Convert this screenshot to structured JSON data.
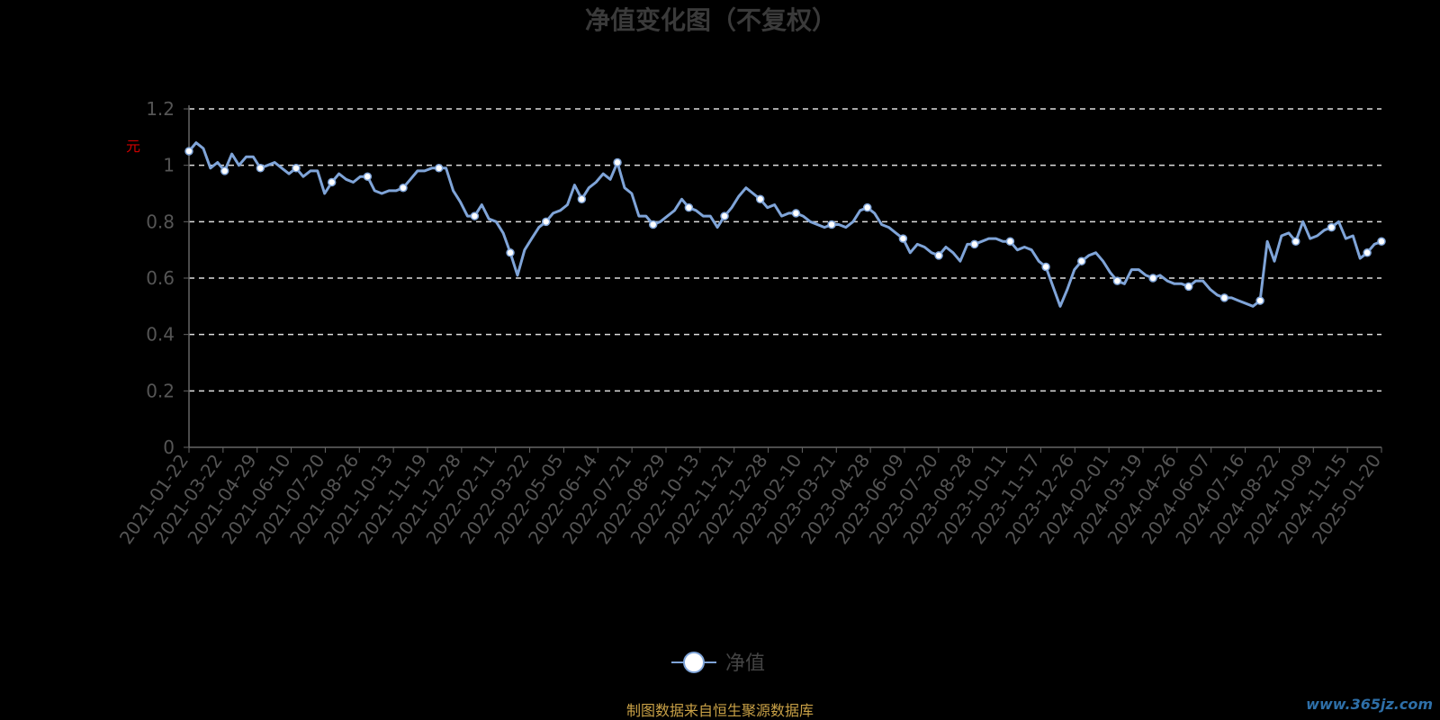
{
  "chart_data": {
    "type": "line",
    "title": "净值变化图（不复权）",
    "ylabel": "元",
    "ylim": [
      0,
      1.2
    ],
    "yticks": [
      0,
      0.2,
      0.4,
      0.6,
      0.8,
      1,
      1.2
    ],
    "ytick_labels": [
      "0",
      "0.2",
      "0.4",
      "0.6",
      "0.8",
      "1",
      "1.2"
    ],
    "grid": true,
    "legend_position": "bottom-center",
    "series_color": "#7fa4d8",
    "x_tick_labels": [
      "2021-01-22",
      "2021-03-22",
      "2021-04-29",
      "2021-06-10",
      "2021-07-20",
      "2021-08-26",
      "2021-10-13",
      "2021-11-19",
      "2021-12-28",
      "2022-02-11",
      "2022-03-22",
      "2022-05-05",
      "2022-06-14",
      "2022-07-21",
      "2022-08-29",
      "2022-10-13",
      "2022-11-21",
      "2022-12-28",
      "2023-02-10",
      "2023-03-21",
      "2023-04-28",
      "2023-06-09",
      "2023-07-20",
      "2023-08-28",
      "2023-10-11",
      "2023-11-17",
      "2023-12-26",
      "2024-02-01",
      "2024-03-19",
      "2024-04-26",
      "2024-06-07",
      "2024-07-16",
      "2024-08-22",
      "2024-10-09",
      "2024-11-15",
      "2025-01-20"
    ],
    "series": [
      {
        "name": "净值",
        "values": [
          1.05,
          1.08,
          1.06,
          0.99,
          1.01,
          0.98,
          1.04,
          1.0,
          1.03,
          1.03,
          0.99,
          1.0,
          1.01,
          0.99,
          0.97,
          0.99,
          0.96,
          0.98,
          0.98,
          0.9,
          0.94,
          0.97,
          0.95,
          0.94,
          0.96,
          0.96,
          0.91,
          0.9,
          0.91,
          0.91,
          0.92,
          0.95,
          0.98,
          0.98,
          0.99,
          0.99,
          0.99,
          0.91,
          0.87,
          0.82,
          0.82,
          0.86,
          0.81,
          0.8,
          0.76,
          0.69,
          0.61,
          0.7,
          0.74,
          0.78,
          0.8,
          0.83,
          0.84,
          0.86,
          0.93,
          0.88,
          0.92,
          0.94,
          0.97,
          0.95,
          1.01,
          0.92,
          0.9,
          0.82,
          0.82,
          0.79,
          0.8,
          0.82,
          0.84,
          0.88,
          0.85,
          0.84,
          0.82,
          0.82,
          0.78,
          0.82,
          0.85,
          0.89,
          0.92,
          0.9,
          0.88,
          0.85,
          0.86,
          0.82,
          0.83,
          0.83,
          0.82,
          0.8,
          0.79,
          0.78,
          0.79,
          0.79,
          0.78,
          0.8,
          0.84,
          0.85,
          0.83,
          0.79,
          0.78,
          0.76,
          0.74,
          0.69,
          0.72,
          0.71,
          0.69,
          0.68,
          0.71,
          0.69,
          0.66,
          0.72,
          0.72,
          0.73,
          0.74,
          0.74,
          0.73,
          0.73,
          0.7,
          0.71,
          0.7,
          0.66,
          0.64,
          0.57,
          0.5,
          0.56,
          0.63,
          0.66,
          0.68,
          0.69,
          0.66,
          0.62,
          0.59,
          0.58,
          0.63,
          0.63,
          0.61,
          0.6,
          0.61,
          0.59,
          0.58,
          0.58,
          0.57,
          0.59,
          0.59,
          0.56,
          0.54,
          0.53,
          0.53,
          0.52,
          0.51,
          0.5,
          0.52,
          0.73,
          0.66,
          0.75,
          0.76,
          0.73,
          0.8,
          0.74,
          0.75,
          0.77,
          0.78,
          0.8,
          0.74,
          0.75,
          0.67,
          0.69,
          0.72,
          0.73
        ]
      }
    ]
  },
  "legend": {
    "label": "净值"
  },
  "footer": {
    "source_note": "制图数据来自恒生聚源数据库",
    "watermark": "www.365jz.com"
  }
}
